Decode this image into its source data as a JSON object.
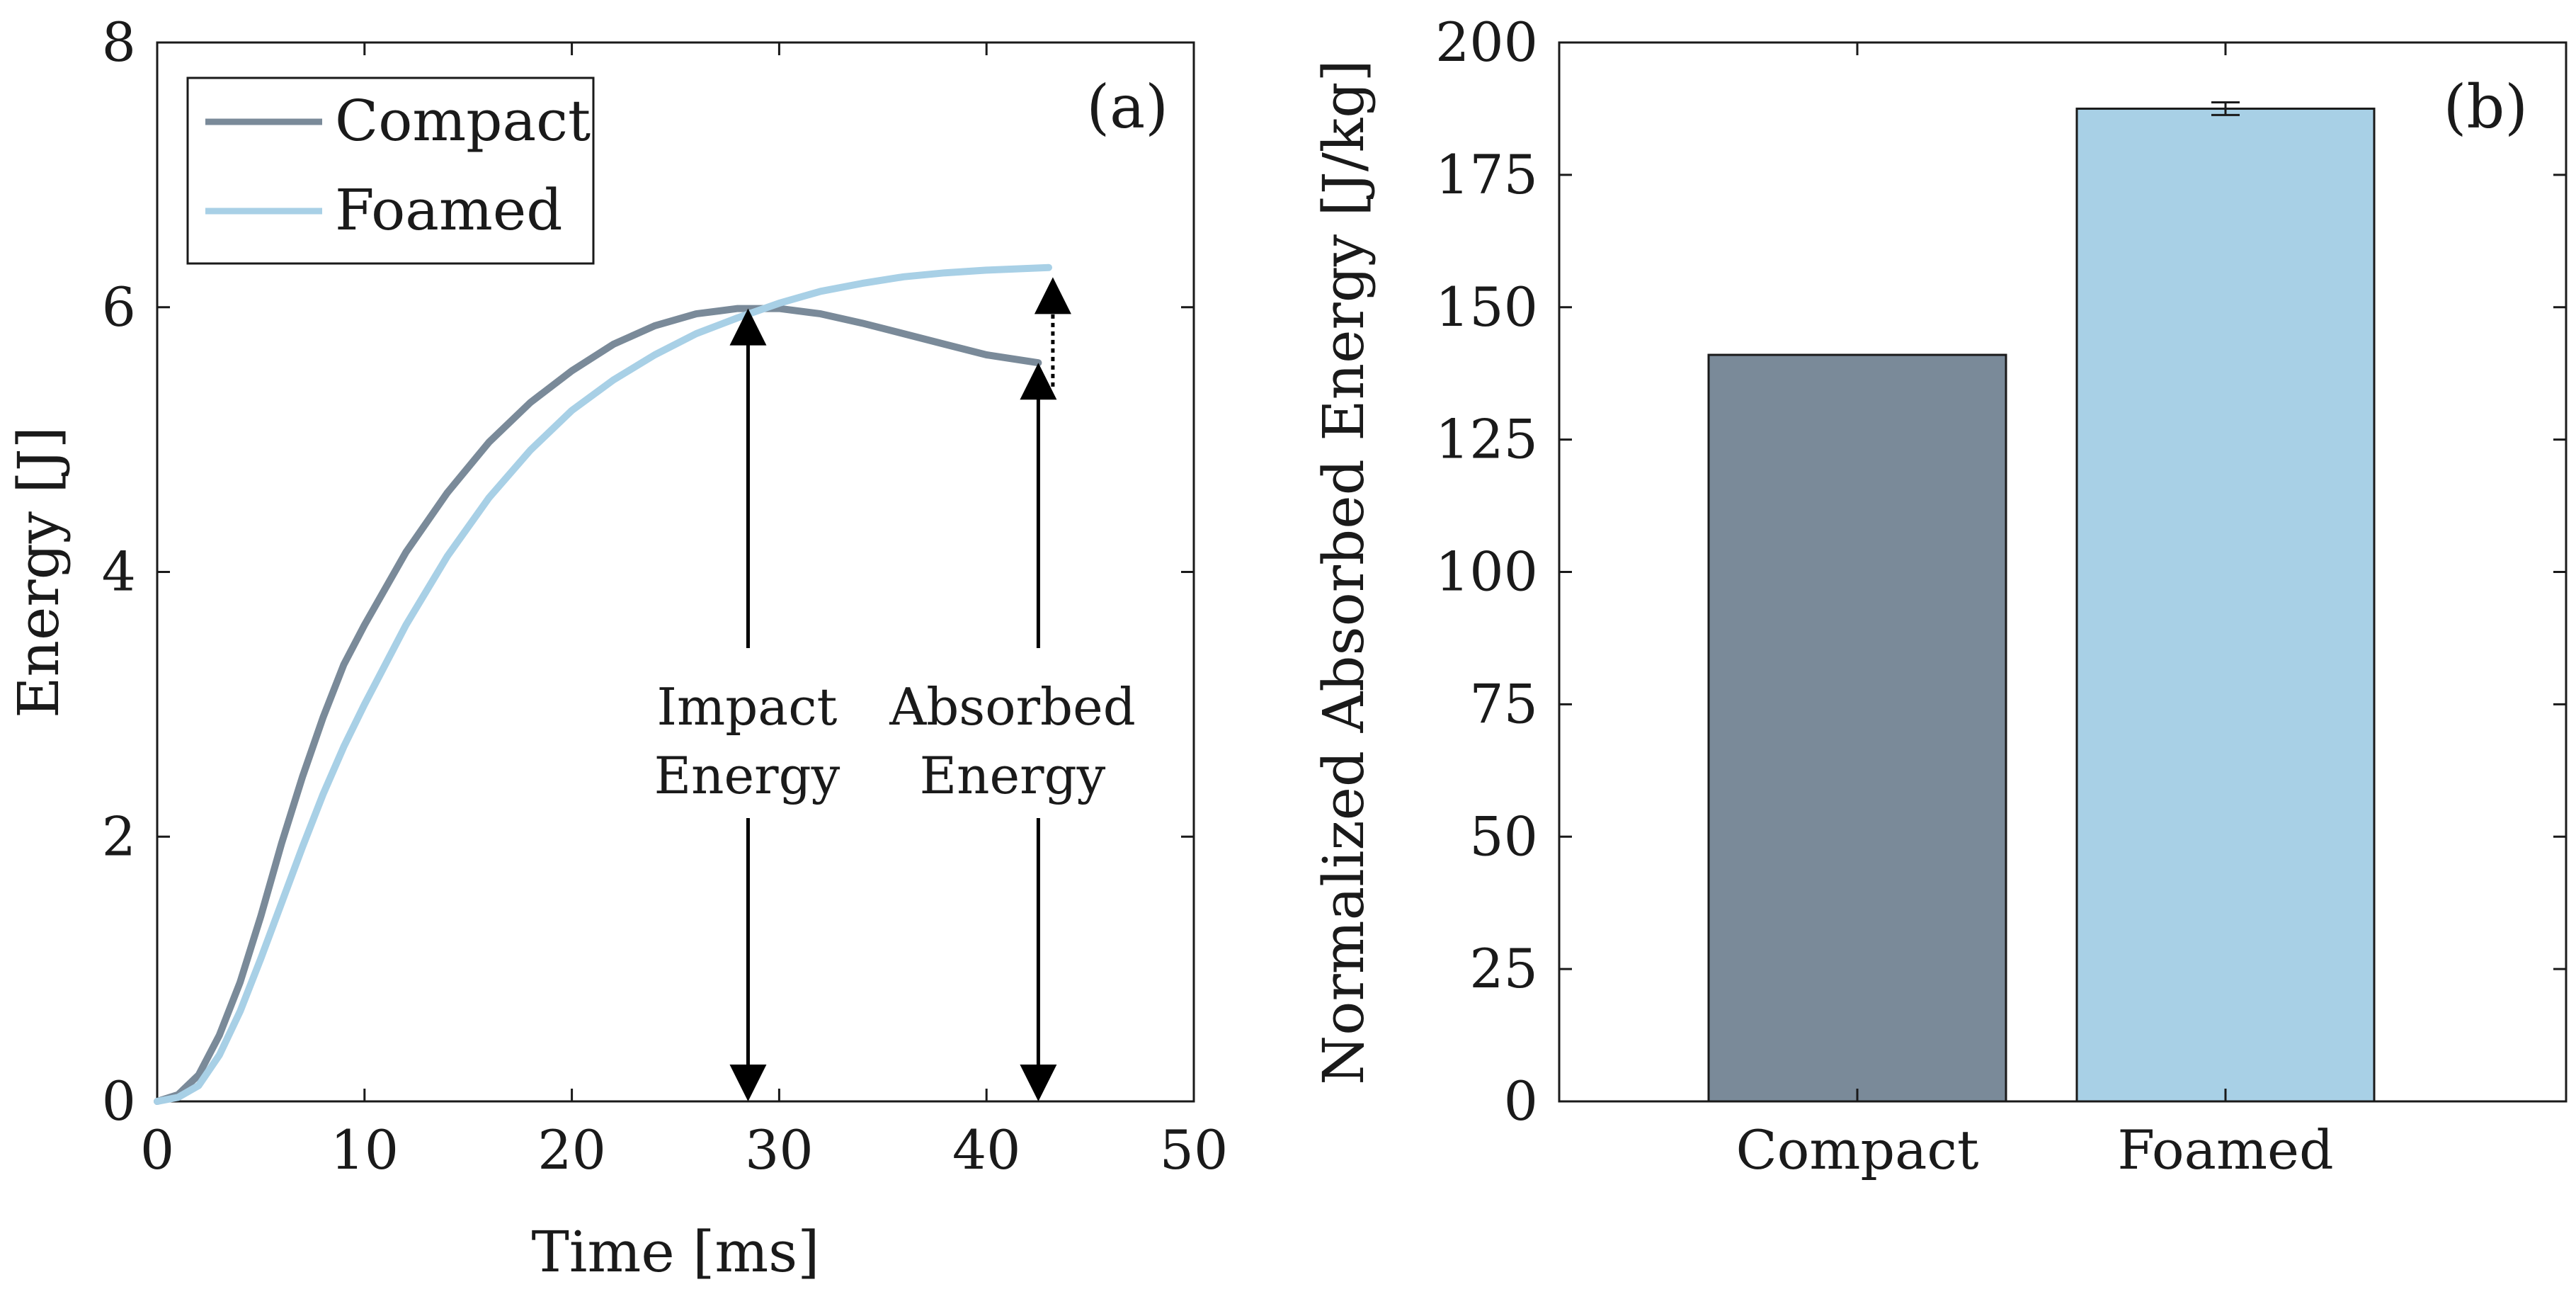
{
  "chart_data": [
    {
      "panel_label": "(a)",
      "type": "line",
      "xlabel": "Time [ms]",
      "ylabel": "Energy [J]",
      "xlim": [
        0,
        50
      ],
      "ylim": [
        0,
        8
      ],
      "xticks": [
        "0",
        "10",
        "20",
        "30",
        "40",
        "50"
      ],
      "yticks": [
        "0",
        "2",
        "4",
        "6",
        "8"
      ],
      "legend_position": "top-left",
      "series": [
        {
          "name": "Compact",
          "color": "#7a8a99",
          "x": [
            0,
            1,
            2,
            3,
            4,
            5,
            6,
            7,
            8,
            9,
            10,
            12,
            14,
            16,
            18,
            20,
            22,
            24,
            26,
            28,
            30,
            32,
            34,
            36,
            38,
            40,
            42.5
          ],
          "y": [
            0,
            0.05,
            0.2,
            0.5,
            0.9,
            1.4,
            1.95,
            2.45,
            2.9,
            3.3,
            3.6,
            4.15,
            4.6,
            4.98,
            5.28,
            5.52,
            5.72,
            5.86,
            5.95,
            5.99,
            5.99,
            5.95,
            5.88,
            5.8,
            5.72,
            5.64,
            5.58
          ]
        },
        {
          "name": "Foamed",
          "color": "#a8d0e6",
          "x": [
            0,
            1,
            2,
            3,
            4,
            5,
            6,
            7,
            8,
            9,
            10,
            12,
            14,
            16,
            18,
            20,
            22,
            24,
            26,
            28,
            30,
            32,
            34,
            36,
            38,
            40,
            43
          ],
          "y": [
            0,
            0.03,
            0.12,
            0.35,
            0.68,
            1.08,
            1.5,
            1.92,
            2.32,
            2.68,
            3.0,
            3.6,
            4.12,
            4.56,
            4.92,
            5.22,
            5.45,
            5.64,
            5.8,
            5.92,
            6.03,
            6.12,
            6.18,
            6.23,
            6.26,
            6.28,
            6.3
          ]
        }
      ],
      "annotations": {
        "impact_energy": {
          "line1": "Impact",
          "line2": "Energy",
          "time_ms": 28.5,
          "from": 0,
          "to": 5.99
        },
        "absorbed_energy": {
          "line1": "Absorbed",
          "line2": "Energy",
          "time_ms": 42.5,
          "from": 0,
          "to": 5.58
        },
        "dotted_difference": {
          "time_ms": 43.2,
          "from": 5.4,
          "to": 6.2
        }
      }
    },
    {
      "panel_label": "(b)",
      "type": "bar",
      "ylabel": "Normalized Absorbed Energy [J/kg]",
      "ylim": [
        0,
        200
      ],
      "yticks": [
        "0",
        "25",
        "50",
        "75",
        "100",
        "125",
        "150",
        "175",
        "200"
      ],
      "categories": [
        "Compact",
        "Foamed"
      ],
      "values": [
        141,
        187.5
      ],
      "errors": [
        0,
        1.2
      ],
      "colors": [
        "#7a8a99",
        "#a8d0e6"
      ]
    }
  ]
}
